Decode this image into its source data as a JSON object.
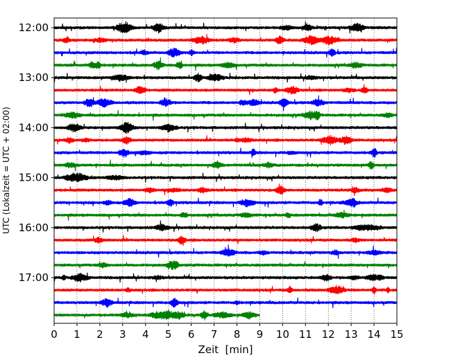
{
  "chart_data": {
    "type": "line",
    "xlabel": "Zeit  [min]",
    "ylabel": "UTC (Lokalzeit = UTC + 02:00)",
    "xlim": [
      0,
      15
    ],
    "x_ticks": [
      "0",
      "1",
      "2",
      "3",
      "4",
      "5",
      "6",
      "7",
      "8",
      "9",
      "10",
      "11",
      "12",
      "13",
      "14",
      "15"
    ],
    "y_ticks": [
      "12:00",
      "13:00",
      "14:00",
      "15:00",
      "16:00",
      "17:00"
    ],
    "vertical_grid": true,
    "grid_style": "dotted",
    "trace_interval_min": 15,
    "trace_colors": [
      "#000000",
      "#ff0000",
      "#0000ff",
      "#008000"
    ],
    "traces": [
      {
        "start": "12:00",
        "color": "#000000",
        "end_min": 15
      },
      {
        "start": "12:15",
        "color": "#ff0000",
        "end_min": 15
      },
      {
        "start": "12:30",
        "color": "#0000ff",
        "end_min": 15
      },
      {
        "start": "12:45",
        "color": "#008000",
        "end_min": 15
      },
      {
        "start": "13:00",
        "color": "#000000",
        "end_min": 15
      },
      {
        "start": "13:15",
        "color": "#ff0000",
        "end_min": 15
      },
      {
        "start": "13:30",
        "color": "#0000ff",
        "end_min": 15
      },
      {
        "start": "13:45",
        "color": "#008000",
        "end_min": 15
      },
      {
        "start": "14:00",
        "color": "#000000",
        "end_min": 15
      },
      {
        "start": "14:15",
        "color": "#ff0000",
        "end_min": 15
      },
      {
        "start": "14:30",
        "color": "#0000ff",
        "end_min": 15
      },
      {
        "start": "14:45",
        "color": "#008000",
        "end_min": 15
      },
      {
        "start": "15:00",
        "color": "#000000",
        "end_min": 15
      },
      {
        "start": "15:15",
        "color": "#ff0000",
        "end_min": 15
      },
      {
        "start": "15:30",
        "color": "#0000ff",
        "end_min": 15
      },
      {
        "start": "15:45",
        "color": "#008000",
        "end_min": 15
      },
      {
        "start": "16:00",
        "color": "#000000",
        "end_min": 15
      },
      {
        "start": "16:15",
        "color": "#ff0000",
        "end_min": 15
      },
      {
        "start": "16:30",
        "color": "#0000ff",
        "end_min": 15
      },
      {
        "start": "16:45",
        "color": "#008000",
        "end_min": 15
      },
      {
        "start": "17:00",
        "color": "#000000",
        "end_min": 15
      },
      {
        "start": "17:15",
        "color": "#ff0000",
        "end_min": 15
      },
      {
        "start": "17:30",
        "color": "#0000ff",
        "end_min": 15
      },
      {
        "start": "17:45",
        "color": "#008000",
        "end_min": 9
      }
    ]
  }
}
